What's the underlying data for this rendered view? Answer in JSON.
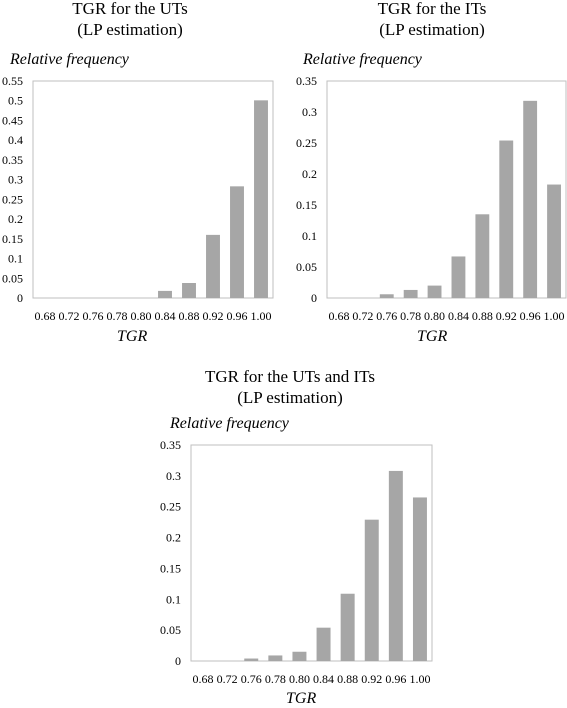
{
  "chart_data": [
    {
      "type": "bar",
      "title_line1": "TGR for the UTs",
      "title_line2": "(LP estimation)",
      "ylabel": "Relative frequency",
      "xlabel": "TGR",
      "categories": [
        "0.68",
        "0.72",
        "0.76",
        "0.78",
        "0.80",
        "0.84",
        "0.88",
        "0.92",
        "0.96",
        "1.00"
      ],
      "values": [
        0,
        0,
        0,
        0,
        0,
        0.018,
        0.038,
        0.16,
        0.283,
        0.501
      ],
      "ylim": [
        0,
        0.55
      ],
      "yticks": [
        "0",
        "0.05",
        "0.1",
        "0.15",
        "0.2",
        "0.25",
        "0.3",
        "0.35",
        "0.4",
        "0.45",
        "0.5",
        "0.55"
      ],
      "bar_color": "#a6a6a6",
      "grid": false,
      "legend": false
    },
    {
      "type": "bar",
      "title_line1": "TGR for the ITs",
      "title_line2": "(LP estimation)",
      "ylabel": "Relative frequency",
      "xlabel": "TGR",
      "categories": [
        "0.68",
        "0.72",
        "0.76",
        "0.78",
        "0.80",
        "0.84",
        "0.88",
        "0.92",
        "0.96",
        "1.00"
      ],
      "values": [
        0,
        0,
        0.006,
        0.013,
        0.02,
        0.067,
        0.135,
        0.254,
        0.318,
        0.183
      ],
      "ylim": [
        0,
        0.35
      ],
      "yticks": [
        "0",
        "0.05",
        "0.1",
        "0.15",
        "0.2",
        "0.25",
        "0.3",
        "0.35"
      ],
      "bar_color": "#a6a6a6",
      "grid": false,
      "legend": false
    },
    {
      "type": "bar",
      "title_line1": "TGR for the UTs and ITs",
      "title_line2": "(LP estimation)",
      "ylabel": "Relative frequency",
      "xlabel": "TGR",
      "categories": [
        "0.68",
        "0.72",
        "0.76",
        "0.78",
        "0.80",
        "0.84",
        "0.88",
        "0.92",
        "0.96",
        "1.00"
      ],
      "values": [
        0,
        0,
        0.004,
        0.009,
        0.015,
        0.054,
        0.109,
        0.229,
        0.308,
        0.265
      ],
      "ylim": [
        0,
        0.35
      ],
      "yticks": [
        "0",
        "0.05",
        "0.1",
        "0.15",
        "0.2",
        "0.25",
        "0.3",
        "0.35"
      ],
      "bar_color": "#a6a6a6",
      "grid": false,
      "legend": false
    }
  ]
}
